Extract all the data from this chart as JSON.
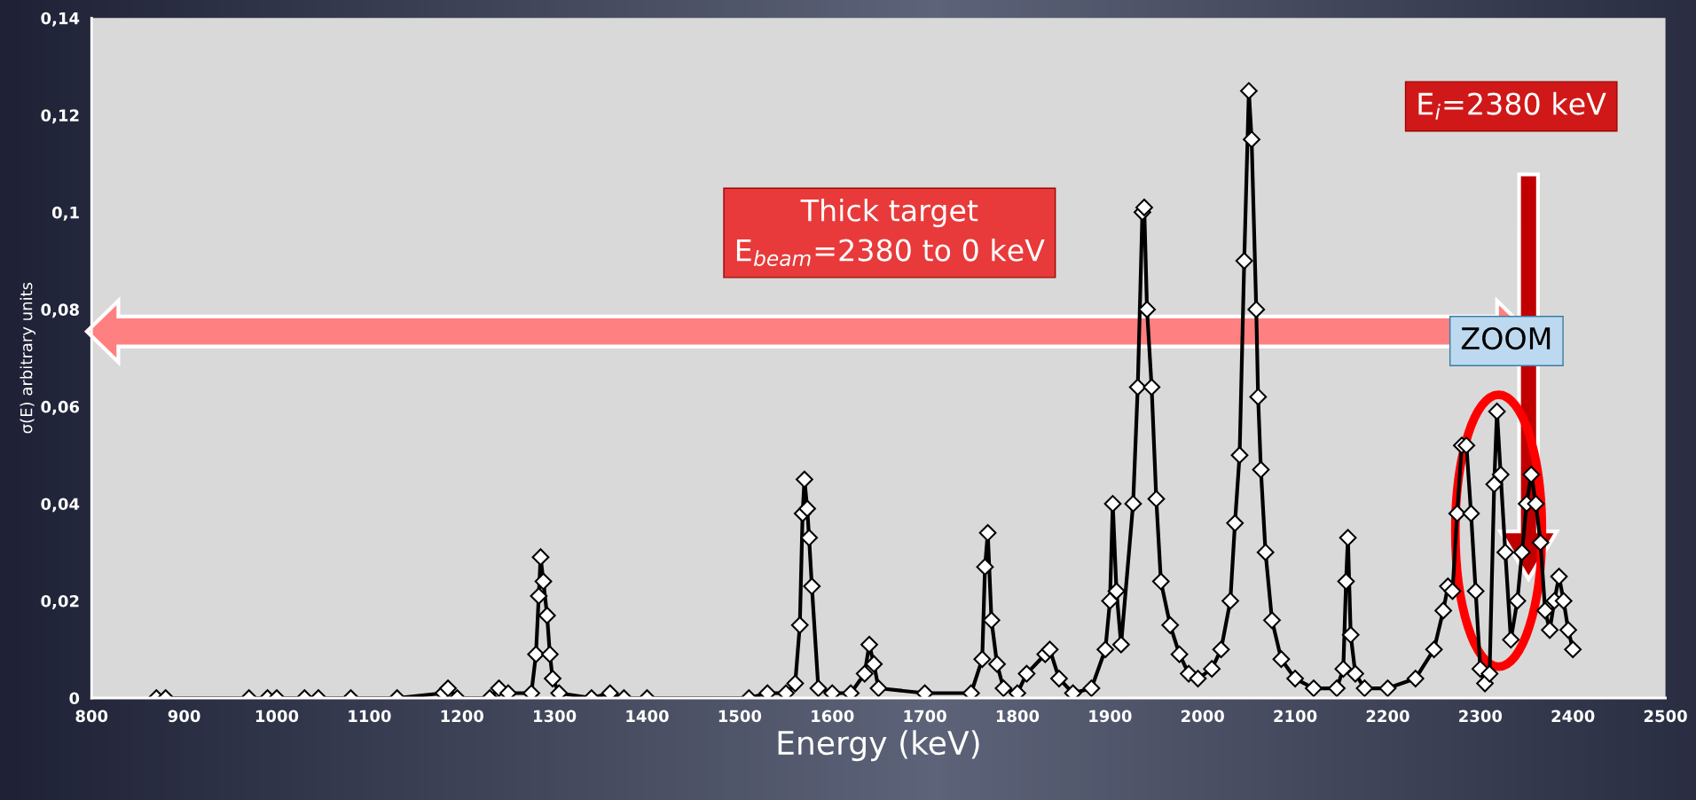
{
  "chart_data": {
    "type": "line",
    "xlabel": "Energy (keV)",
    "ylabel": "σ(E) arbitrary units",
    "annotations": [
      "Thick target\nE$_{beam}$=2380 to 0 keV",
      "E$_{i}$=2380 keV",
      "ZOOM"
    ],
    "marker": "diamond",
    "line_style": "solid",
    "grid": false,
    "xlim": [
      800,
      2500
    ],
    "xticks": [
      800,
      900,
      1000,
      1100,
      1200,
      1300,
      1400,
      1500,
      1600,
      1700,
      1800,
      1900,
      2000,
      2100,
      2200,
      2300,
      2400,
      2500
    ],
    "ylim": [
      0,
      0.14
    ],
    "yticks": [
      {
        "value": 0,
        "label": "0"
      },
      {
        "value": 0.02,
        "label": "0,02"
      },
      {
        "value": 0.04,
        "label": "0,04"
      },
      {
        "value": 0.06,
        "label": "0,06"
      },
      {
        "value": 0.08,
        "label": "0,08"
      },
      {
        "value": 0.1,
        "label": "0,1"
      },
      {
        "value": 0.12,
        "label": "0,12"
      },
      {
        "value": 0.14,
        "label": "0,14"
      }
    ],
    "series": [
      {
        "color": "#000000",
        "x": [
          870,
          880,
          970,
          990,
          1000,
          1030,
          1045,
          1080,
          1130,
          1180,
          1185,
          1195,
          1230,
          1240,
          1250,
          1275,
          1280,
          1283,
          1285,
          1288,
          1292,
          1295,
          1298,
          1305,
          1340,
          1360,
          1375,
          1400,
          1510,
          1530,
          1550,
          1560,
          1565,
          1568,
          1570,
          1573,
          1575,
          1578,
          1585,
          1600,
          1620,
          1635,
          1640,
          1645,
          1650,
          1700,
          1750,
          1762,
          1765,
          1768,
          1772,
          1778,
          1785,
          1800,
          1810,
          1830,
          1835,
          1845,
          1860,
          1880,
          1895,
          1900,
          1903,
          1907,
          1912,
          1925,
          1930,
          1935,
          1937,
          1940,
          1945,
          1950,
          1955,
          1965,
          1975,
          1985,
          1995,
          2010,
          2020,
          2030,
          2035,
          2040,
          2045,
          2050,
          2053,
          2058,
          2060,
          2063,
          2068,
          2075,
          2085,
          2100,
          2120,
          2145,
          2152,
          2155,
          2157,
          2160,
          2165,
          2175,
          2200,
          2230,
          2250,
          2260,
          2265,
          2270,
          2275,
          2280,
          2285,
          2290,
          2295,
          2300,
          2305,
          2310,
          2315,
          2318,
          2322,
          2327,
          2333,
          2340,
          2345,
          2350,
          2355,
          2360,
          2365,
          2370,
          2375,
          2380,
          2385,
          2390,
          2395,
          2400
        ],
        "values": [
          0,
          0,
          0,
          0,
          0,
          0,
          0,
          0,
          0,
          0.001,
          0.002,
          0,
          0,
          0.002,
          0.001,
          0.001,
          0.009,
          0.021,
          0.029,
          0.024,
          0.017,
          0.009,
          0.004,
          0.001,
          0,
          0.001,
          0,
          0,
          0,
          0.001,
          0.001,
          0.003,
          0.015,
          0.038,
          0.045,
          0.039,
          0.033,
          0.023,
          0.002,
          0.001,
          0.001,
          0.005,
          0.011,
          0.007,
          0.002,
          0.001,
          0.001,
          0.008,
          0.027,
          0.034,
          0.016,
          0.007,
          0.002,
          0.001,
          0.005,
          0.009,
          0.01,
          0.004,
          0.001,
          0.002,
          0.01,
          0.02,
          0.04,
          0.022,
          0.011,
          0.04,
          0.064,
          0.1,
          0.101,
          0.08,
          0.064,
          0.041,
          0.024,
          0.015,
          0.009,
          0.005,
          0.004,
          0.006,
          0.01,
          0.02,
          0.036,
          0.05,
          0.09,
          0.125,
          0.115,
          0.08,
          0.062,
          0.047,
          0.03,
          0.016,
          0.008,
          0.004,
          0.002,
          0.002,
          0.006,
          0.024,
          0.033,
          0.013,
          0.005,
          0.002,
          0.002,
          0.004,
          0.01,
          0.018,
          0.023,
          0.022,
          0.038,
          0.052,
          0.052,
          0.038,
          0.022,
          0.006,
          0.003,
          0.005,
          0.044,
          0.059,
          0.046,
          0.03,
          0.012,
          0.02,
          0.03,
          0.04,
          0.046,
          0.04,
          0.032,
          0.018,
          0.014,
          0.02,
          0.025,
          0.02,
          0.014,
          0.01
        ]
      }
    ]
  }
}
